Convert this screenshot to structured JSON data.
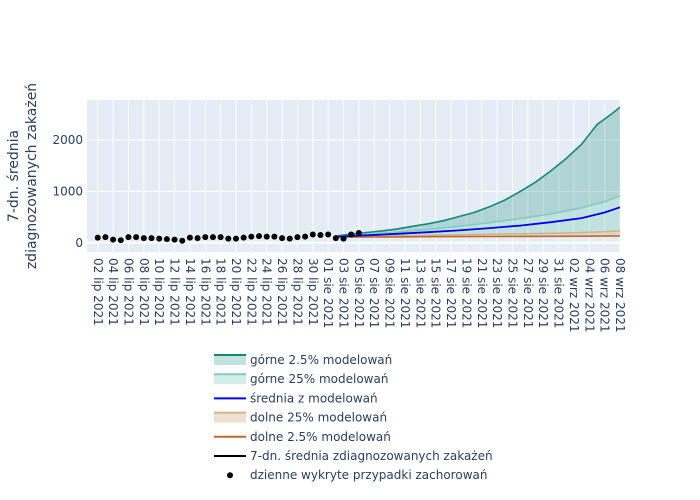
{
  "chart_data": {
    "type": "line",
    "ylabel": [
      "7-dn. średnia",
      "zdiagnozowanych zakażeń"
    ],
    "xlim_days": [
      -1.4,
      68
    ],
    "ylim": [
      -180,
      2780
    ],
    "y_ticks": [
      0,
      1000,
      2000
    ],
    "x_tick_labels": [
      "02 lip 2021",
      "04 lip 2021",
      "06 lip 2021",
      "08 lip 2021",
      "10 lip 2021",
      "12 lip 2021",
      "14 lip 2021",
      "16 lip 2021",
      "18 lip 2021",
      "20 lip 2021",
      "22 lip 2021",
      "24 lip 2021",
      "26 lip 2021",
      "28 lip 2021",
      "30 lip 2021",
      "01 sie 2021",
      "03 sie 2021",
      "05 sie 2021",
      "07 sie 2021",
      "09 sie 2021",
      "11 sie 2021",
      "13 sie 2021",
      "15 sie 2021",
      "17 sie 2021",
      "19 sie 2021",
      "21 sie 2021",
      "23 sie 2021",
      "25 sie 2021",
      "27 sie 2021",
      "29 sie 2021",
      "31 sie 2021",
      "02 wrz 2021",
      "04 wrz 2021",
      "06 wrz 2021",
      "08 wrz 2021"
    ],
    "series": [
      {
        "name": "górne 2.5% modelowań",
        "color": "#128a74",
        "fill": "rgba(20,140,120,0.25)",
        "x": [
          31,
          33,
          35,
          37,
          39,
          41,
          43,
          45,
          47,
          49,
          51,
          53,
          55,
          57,
          59,
          61,
          63,
          65,
          67,
          68
        ],
        "y": [
          130,
          170,
          200,
          230,
          270,
          320,
          370,
          430,
          510,
          590,
          700,
          830,
          1000,
          1180,
          1400,
          1640,
          1920,
          2300,
          2520,
          2640
        ]
      },
      {
        "name": "górne 25% modelowań",
        "color": "#7fcdbb",
        "fill": "rgba(127,205,187,0.35)",
        "x": [
          31,
          35,
          39,
          43,
          47,
          51,
          55,
          59,
          63,
          66,
          68
        ],
        "y": [
          125,
          160,
          205,
          260,
          320,
          390,
          470,
          560,
          680,
          800,
          910
        ]
      },
      {
        "name": "średnia z modelowań",
        "color": "#0000ee",
        "x": [
          31,
          35,
          39,
          43,
          47,
          51,
          55,
          59,
          63,
          66,
          68
        ],
        "y": [
          120,
          145,
          175,
          205,
          240,
          285,
          335,
          400,
          480,
          590,
          690
        ]
      },
      {
        "name": "dolne 25% modelowań",
        "color": "#d2b48c",
        "fill": "rgba(205,170,120,0.35)",
        "x": [
          31,
          35,
          39,
          43,
          47,
          51,
          55,
          59,
          63,
          66,
          68
        ],
        "y": [
          115,
          125,
          135,
          145,
          155,
          165,
          175,
          185,
          200,
          215,
          230
        ]
      },
      {
        "name": "dolne 2.5% modelowań",
        "color": "#c06a28",
        "x": [
          31,
          35,
          39,
          43,
          47,
          51,
          55,
          59,
          63,
          66,
          68
        ],
        "y": [
          110,
          112,
          115,
          118,
          120,
          122,
          124,
          126,
          128,
          130,
          132
        ]
      },
      {
        "name": "7-dn. średnia zdiagnozowanych zakażeń",
        "color": "#000000"
      },
      {
        "name": "dzienne wykryte przypadki zachorowań",
        "color": "#000000",
        "x": [
          0,
          1,
          2,
          3,
          4,
          5,
          6,
          7,
          8,
          9,
          10,
          11,
          12,
          13,
          14,
          15,
          16,
          17,
          18,
          19,
          20,
          21,
          22,
          23,
          24,
          25,
          26,
          27,
          28,
          29,
          30,
          31,
          32,
          33,
          34
        ],
        "y": [
          100,
          110,
          60,
          50,
          110,
          110,
          90,
          90,
          80,
          70,
          60,
          40,
          100,
          90,
          110,
          110,
          110,
          80,
          80,
          100,
          120,
          130,
          120,
          120,
          90,
          80,
          110,
          120,
          160,
          150,
          160,
          90,
          80,
          160,
          190
        ]
      }
    ]
  }
}
